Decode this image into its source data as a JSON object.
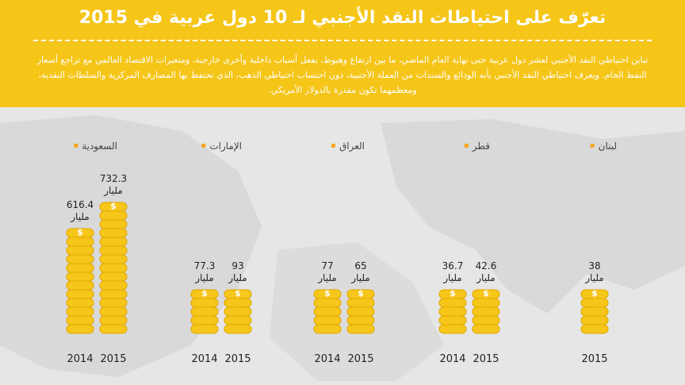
{
  "header": {
    "title": "تعرّف على احتياطات النقد الأجنبي لـ 10 دول عربية في 2015",
    "description": "تباين احتياطي النقد الأجنبي لعشر دول عربية حتى نهاية العام الماضي، ما بين ارتفاع وهبوط، بفعل أسباب داخلية وأخرى خارجية، ومتغيرات الاقتصاد العالمي مع تراجع أسعار النفط الخام. ويعرف احتياطي النقد الأجنبي بأنه الودائع والسندات من العملة الأجنبية، دون احتساب احتياطي الذهب، الذي تحتفظ بها المصارف المركزية والسلطات النقدية، ومعظمهما تكون مقدرة بالدولار الأمريكي."
  },
  "colors": {
    "header_bg": "#f5c518",
    "coin": "#f7c61b",
    "coin_edge": "#e0a800",
    "bullet": "#f5a623"
  },
  "chart_data": {
    "type": "bar",
    "unit": "مليار",
    "years": [
      "2014",
      "2015"
    ],
    "groups": [
      {
        "country": "السعودية",
        "values": [
          {
            "year": "2014",
            "value": 616.4,
            "label": "616.4"
          },
          {
            "year": "2015",
            "value": 732.3,
            "label": "732.3"
          }
        ]
      },
      {
        "country": "الإمارات",
        "values": [
          {
            "year": "2014",
            "value": 77.3,
            "label": "77.3"
          },
          {
            "year": "2015",
            "value": 93,
            "label": "93"
          }
        ]
      },
      {
        "country": "العراق",
        "values": [
          {
            "year": "2014",
            "value": 77,
            "label": "77"
          },
          {
            "year": "2015",
            "value": 65,
            "label": "65"
          }
        ]
      },
      {
        "country": "قطر",
        "values": [
          {
            "year": "2014",
            "value": 36.7,
            "label": "36.7"
          },
          {
            "year": "2015",
            "value": 42.6,
            "label": "42.6"
          }
        ]
      },
      {
        "country": "لبنان",
        "values": [
          {
            "year": "2015",
            "value": 38,
            "label": "38"
          }
        ]
      }
    ]
  }
}
